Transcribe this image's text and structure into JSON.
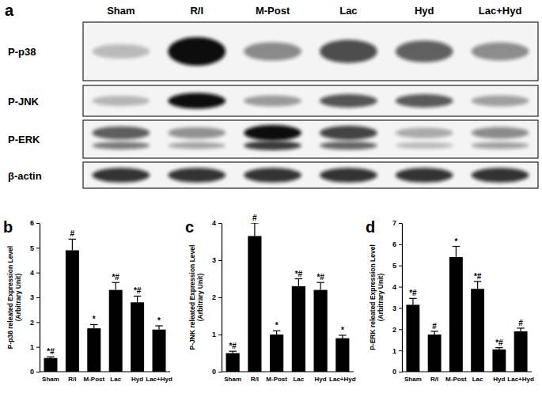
{
  "blot": {
    "panel": "a",
    "lanes": [
      "Sham",
      "R/I",
      "M-Post",
      "Lac",
      "Hyd",
      "Lac+Hyd"
    ],
    "rows": [
      "P-p38",
      "P-JNK",
      "P-ERK",
      "β-actin"
    ]
  },
  "chart_data": [
    {
      "type": "bar",
      "title": "b",
      "y_label": [
        "P-p38 releated  Expression Level",
        "(Arbitrary Unit)"
      ],
      "categories": [
        "Sham",
        "R/I",
        "M-Post",
        "Lac",
        "Hyd",
        "Lac+Hyd"
      ],
      "values": [
        0.55,
        4.9,
        1.75,
        3.3,
        2.8,
        1.7
      ],
      "error": [
        0.05,
        0.45,
        0.15,
        0.3,
        0.25,
        0.15
      ],
      "annotations": [
        "*#",
        "#",
        "*",
        "*#",
        "*#",
        "*"
      ],
      "color": "#000000",
      "ylim": [
        0,
        6
      ],
      "yticks": [
        0,
        1,
        2,
        3,
        4,
        5,
        6
      ]
    },
    {
      "type": "bar",
      "title": "c",
      "y_label": [
        "P-JNK releated  Expression Level",
        "(Arbitrary Unit)"
      ],
      "categories": [
        "Sham",
        "R/I",
        "M-Post",
        "Lac",
        "Hyd",
        "Lac+Hyd"
      ],
      "values": [
        0.5,
        3.65,
        1.0,
        2.3,
        2.2,
        0.9
      ],
      "error": [
        0.05,
        0.35,
        0.1,
        0.2,
        0.2,
        0.08
      ],
      "annotations": [
        "*#",
        "#",
        "*",
        "*#",
        "*#",
        "*"
      ],
      "color": "#000000",
      "ylim": [
        0,
        4
      ],
      "yticks": [
        0,
        1,
        2,
        3,
        4
      ]
    },
    {
      "type": "bar",
      "title": "d",
      "y_label": [
        "P-ERK releated  Expression Level",
        "(Arbitrary Unit)"
      ],
      "categories": [
        "Sham",
        "R/I",
        "M-Post",
        "Lac",
        "Hyd",
        "Lac+Hyd"
      ],
      "values": [
        3.15,
        1.75,
        5.4,
        3.9,
        1.05,
        1.9
      ],
      "error": [
        0.3,
        0.15,
        0.5,
        0.35,
        0.08,
        0.15
      ],
      "annotations": [
        "*#",
        "#",
        "*",
        "*#",
        "*#",
        "#"
      ],
      "color": "#000000",
      "ylim": [
        0,
        7
      ],
      "yticks": [
        0,
        1,
        2,
        3,
        4,
        5,
        6,
        7
      ]
    }
  ]
}
